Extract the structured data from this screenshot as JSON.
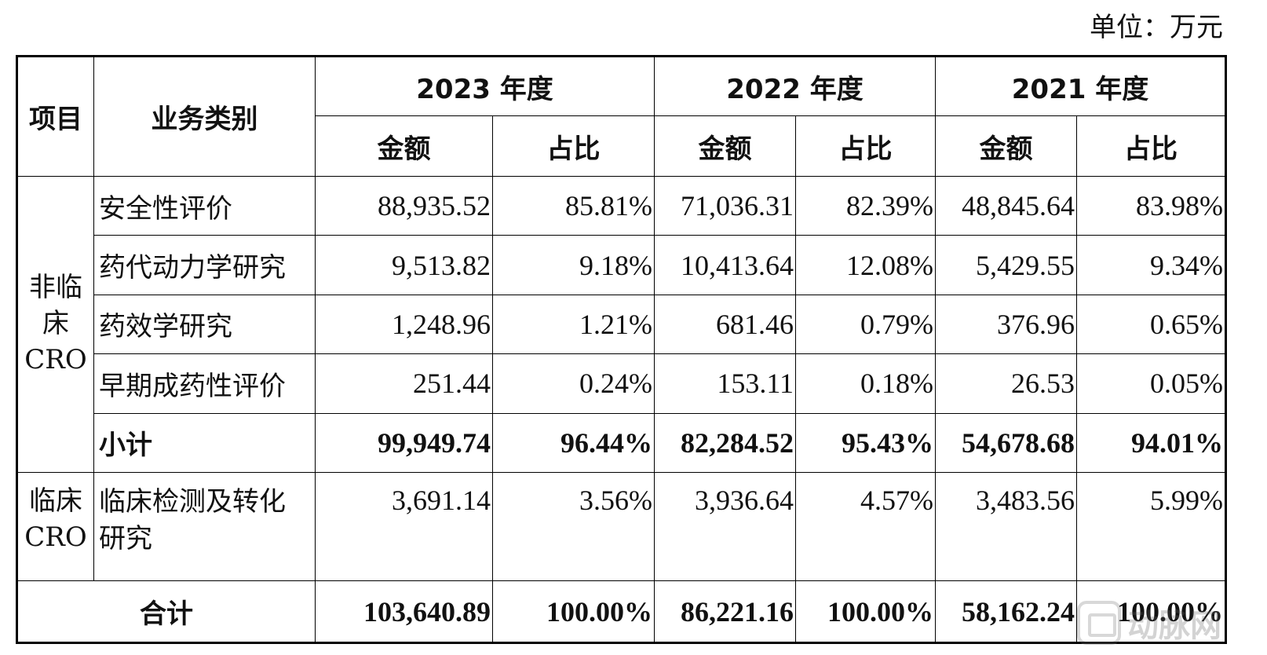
{
  "unit_label": "单位：万元",
  "header": {
    "project": "项目",
    "business": "业务类别",
    "years": [
      "2023 年度",
      "2022 年度",
      "2021 年度"
    ],
    "amount": "金额",
    "ratio": "占比"
  },
  "groups": {
    "nonclinical": "非临床CRO",
    "clinical": "临床CRO"
  },
  "rows": [
    {
      "name": "安全性评价",
      "v": [
        "88,935.52",
        "85.81%",
        "71,036.31",
        "82.39%",
        "48,845.64",
        "83.98%"
      ]
    },
    {
      "name": "药代动力学研究",
      "v": [
        "9,513.82",
        "9.18%",
        "10,413.64",
        "12.08%",
        "5,429.55",
        "9.34%"
      ]
    },
    {
      "name": "药效学研究",
      "v": [
        "1,248.96",
        "1.21%",
        "681.46",
        "0.79%",
        "376.96",
        "0.65%"
      ]
    },
    {
      "name": "早期成药性评价",
      "v": [
        "251.44",
        "0.24%",
        "153.11",
        "0.18%",
        "26.53",
        "0.05%"
      ]
    },
    {
      "name": "小计",
      "v": [
        "99,949.74",
        "96.44%",
        "82,284.52",
        "95.43%",
        "54,678.68",
        "94.01%"
      ]
    },
    {
      "name": "临床检测及转化研究",
      "v": [
        "3,691.14",
        "3.56%",
        "3,936.64",
        "4.57%",
        "3,483.56",
        "5.99%"
      ]
    }
  ],
  "total": {
    "name": "合计",
    "v": [
      "103,640.89",
      "100.00%",
      "86,221.16",
      "100.00%",
      "58,162.24",
      "100.00%"
    ]
  },
  "watermark": {
    "text": "动脉网",
    "icon": "dongmai-logo-icon"
  }
}
